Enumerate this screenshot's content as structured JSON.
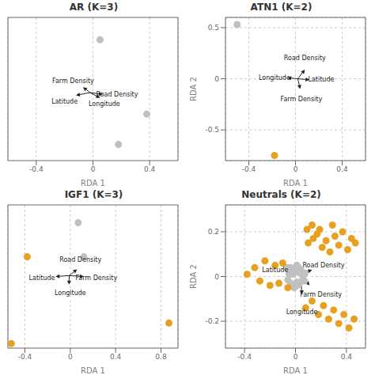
{
  "chart_data": [
    {
      "type": "scatter",
      "title": "AR (K=3)",
      "x_label": "RDA 1",
      "xlim": [
        -0.6,
        0.6
      ],
      "ylim": [
        -0.8,
        0.8
      ],
      "xticks": [
        -0.4,
        0.0,
        0.4
      ],
      "tick_labels": "x",
      "grid": true,
      "series": [
        {
          "color": "#c0c0c0",
          "x": [
            0.05,
            0.38,
            0.18
          ],
          "y": [
            0.55,
            -0.28,
            -0.62
          ]
        }
      ],
      "annotations": [
        {
          "text": "Road Density",
          "x": 0.17,
          "y": -0.06,
          "arrow_from": [
            -0.02,
            -0.04
          ],
          "arrow_to": [
            0.07,
            -0.06
          ]
        },
        {
          "text": "Farm Density",
          "x": -0.14,
          "y": 0.09,
          "arrow_from": [
            -0.02,
            -0.04
          ],
          "arrow_to": [
            -0.07,
            0.02
          ]
        },
        {
          "text": "Latitude",
          "x": -0.2,
          "y": -0.14,
          "arrow_from": [
            -0.02,
            -0.04
          ],
          "arrow_to": [
            -0.12,
            -0.07
          ]
        },
        {
          "text": "Longitude",
          "x": 0.08,
          "y": -0.17,
          "arrow_from": [
            -0.02,
            -0.04
          ],
          "arrow_to": [
            0.05,
            -0.1
          ]
        }
      ]
    },
    {
      "type": "scatter",
      "title": "ATN1 (K=2)",
      "x_label": "RDA 1",
      "y_label": "RDA 2",
      "xlim": [
        -0.6,
        0.6
      ],
      "ylim": [
        -0.8,
        0.6
      ],
      "xticks": [
        -0.4,
        0.0,
        0.4
      ],
      "yticks": [
        -0.5,
        0.0,
        0.5
      ],
      "grid": true,
      "series": [
        {
          "color": "#c0c0c0",
          "x": [
            -0.5
          ],
          "y": [
            0.53
          ]
        },
        {
          "color": "#e8a020",
          "x": [
            -0.18
          ],
          "y": [
            -0.75
          ]
        }
      ],
      "annotations": [
        {
          "text": "Road Density",
          "x": 0.08,
          "y": 0.2,
          "arrow_from": [
            0.02,
            0.0
          ],
          "arrow_to": [
            0.08,
            0.09
          ]
        },
        {
          "text": "Longitude",
          "x": -0.18,
          "y": 0.01,
          "arrow_from": [
            0.02,
            0.0
          ],
          "arrow_to": [
            -0.07,
            0.01
          ]
        },
        {
          "text": "Latitude",
          "x": 0.22,
          "y": -0.01,
          "arrow_from": [
            0.02,
            0.0
          ],
          "arrow_to": [
            0.12,
            -0.01
          ]
        },
        {
          "text": "Farm Density",
          "x": 0.05,
          "y": -0.2,
          "arrow_from": [
            0.02,
            0.0
          ],
          "arrow_to": [
            0.04,
            -0.1
          ]
        }
      ]
    },
    {
      "type": "scatter",
      "title": "IGF1 (K=3)",
      "x_label": "RDA 1",
      "xlim": [
        -0.55,
        0.95
      ],
      "ylim": [
        -0.8,
        0.8
      ],
      "xticks": [
        -0.4,
        0.0,
        0.4,
        0.8
      ],
      "tick_labels": "x",
      "grid": true,
      "series": [
        {
          "color": "#c0c0c0",
          "x": [
            0.07,
            0.12
          ],
          "y": [
            0.6,
            0.22
          ]
        },
        {
          "color": "#e8a020",
          "x": [
            -0.38,
            0.87,
            -0.52
          ],
          "y": [
            0.22,
            -0.52,
            -0.75
          ]
        }
      ],
      "annotations": [
        {
          "text": "Road Density",
          "x": 0.09,
          "y": 0.19,
          "arrow_from": [
            -0.01,
            0.01
          ],
          "arrow_to": [
            0.06,
            0.08
          ]
        },
        {
          "text": "Farm Density",
          "x": 0.23,
          "y": -0.02,
          "arrow_from": [
            -0.01,
            0.01
          ],
          "arrow_to": [
            0.12,
            0.0
          ]
        },
        {
          "text": "Latitude",
          "x": -0.25,
          "y": -0.02,
          "arrow_from": [
            -0.01,
            0.01
          ],
          "arrow_to": [
            -0.13,
            0.0
          ]
        },
        {
          "text": "Longitude",
          "x": 0.0,
          "y": -0.19,
          "arrow_from": [
            -0.01,
            0.01
          ],
          "arrow_to": [
            -0.01,
            -0.09
          ]
        }
      ]
    },
    {
      "type": "scatter",
      "title": "Neutrals (K=2)",
      "x_label": "RDA 1",
      "y_label": "RDA 2",
      "xlim": [
        -0.55,
        0.55
      ],
      "ylim": [
        -0.32,
        0.32
      ],
      "xticks": [
        -0.4,
        0.0,
        0.4
      ],
      "yticks": [
        -0.2,
        0.0,
        0.2
      ],
      "grid": true,
      "series": [
        {
          "color": "#c0c0c0",
          "x": [
            0.02,
            -0.04,
            0.07,
            -0.02,
            0.04,
            -0.01,
            0.05,
            -0.05,
            0.03,
            0.01,
            -0.03,
            0.06,
            -0.01,
            0.025,
            -0.06,
            0.04,
            -0.025,
            0.05,
            -0.04,
            0.015,
            0.035,
            -0.05,
            0.01,
            -0.065,
            0.075
          ],
          "y": [
            0.02,
            0.04,
            -0.02,
            0.01,
            0.03,
            -0.04,
            0.02,
            0.025,
            -0.03,
            0.05,
            0.015,
            -0.01,
            -0.05,
            0.04,
            -0.015,
            -0.025,
            0.035,
            0.01,
            -0.03,
            -0.04,
            0.025,
            0.01,
            -0.025,
            0.04,
            0.015
          ]
        },
        {
          "color": "#e8a020",
          "x": [
            -0.38,
            -0.32,
            -0.28,
            -0.24,
            -0.2,
            -0.16,
            -0.13,
            -0.1,
            -0.06,
            0.1,
            0.14,
            0.17,
            0.21,
            0.24,
            0.27,
            0.31,
            0.34,
            0.37,
            0.41,
            0.44,
            0.47,
            0.09,
            0.13,
            0.19,
            0.29,
            0.08,
            0.13,
            0.18,
            0.22,
            0.26,
            0.3,
            0.34,
            0.38,
            0.42,
            0.46
          ],
          "y": [
            0.01,
            0.04,
            -0.02,
            0.07,
            -0.04,
            0.05,
            -0.03,
            0.06,
            -0.05,
            0.15,
            0.17,
            0.19,
            0.13,
            0.16,
            0.11,
            0.18,
            0.14,
            0.2,
            0.12,
            0.17,
            0.15,
            0.21,
            0.23,
            0.21,
            0.23,
            -0.14,
            -0.11,
            -0.17,
            -0.13,
            -0.19,
            -0.15,
            -0.21,
            -0.17,
            -0.23,
            -0.19
          ]
        }
      ],
      "annotations": [
        {
          "text": "Road Density",
          "x": 0.22,
          "y": 0.05,
          "arrow_from": [
            0.04,
            0.01
          ],
          "arrow_to": [
            0.13,
            0.03
          ]
        },
        {
          "text": "Farm Density",
          "x": 0.2,
          "y": -0.08,
          "arrow_from": [
            0.04,
            0.01
          ],
          "arrow_to": [
            0.11,
            -0.04
          ]
        },
        {
          "text": "Latitude",
          "x": -0.16,
          "y": 0.03,
          "arrow_from": [
            0.04,
            0.01
          ],
          "arrow_to": [
            -0.06,
            0.02
          ]
        },
        {
          "text": "Longitude",
          "x": 0.05,
          "y": -0.16,
          "arrow_from": [
            0.04,
            0.01
          ],
          "arrow_to": [
            0.05,
            -0.08
          ]
        }
      ]
    }
  ]
}
